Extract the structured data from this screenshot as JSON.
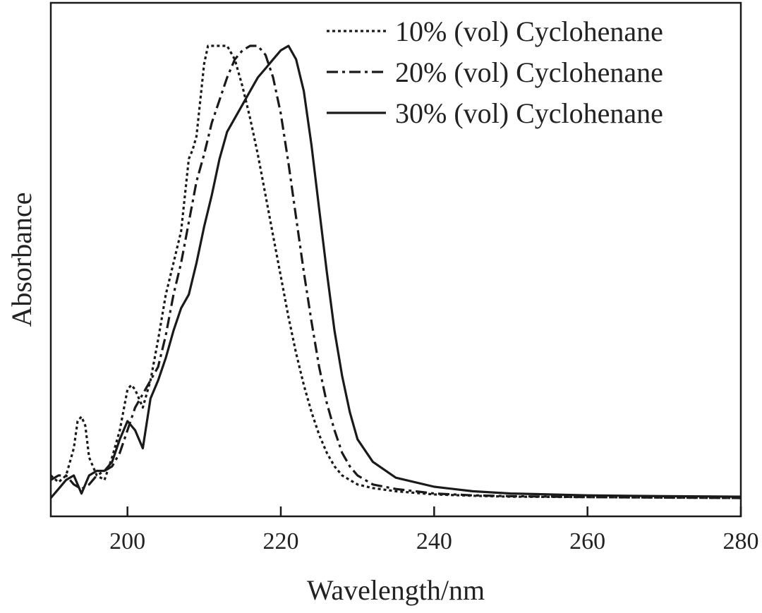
{
  "chart_data": {
    "type": "line",
    "title": "",
    "xlabel": "Wavelength/nm",
    "ylabel": "Absorbance",
    "xlim": [
      190,
      280
    ],
    "ylim": [
      0,
      1
    ],
    "x_ticks": [
      200,
      220,
      240,
      260,
      280
    ],
    "y_tick_labels_shown": false,
    "grid": false,
    "legend_position": "top-right",
    "colors": {
      "line": "#1a1a1a",
      "axis": "#1a1a1a",
      "background": "#ffffff"
    },
    "series": [
      {
        "name": "10% (vol) Cyclohenane",
        "line_style": "dotted",
        "x": [
          190,
          191,
          192,
          193,
          193.5,
          194,
          194.5,
          195,
          196,
          197,
          198,
          199,
          200,
          200.5,
          201,
          202,
          203,
          204,
          205,
          206,
          207,
          208,
          208.5,
          209,
          209.5,
          210,
          210.5,
          211,
          212,
          213,
          214,
          215,
          216,
          217,
          218,
          219,
          220,
          221,
          222,
          223,
          224,
          225,
          226,
          227,
          228,
          229,
          230,
          232,
          235,
          240,
          245,
          250,
          260,
          270,
          280
        ],
        "y": [
          0.05,
          0.035,
          0.05,
          0.11,
          0.17,
          0.18,
          0.16,
          0.09,
          0.05,
          0.04,
          0.09,
          0.15,
          0.24,
          0.25,
          0.24,
          0.2,
          0.26,
          0.35,
          0.45,
          0.52,
          0.59,
          0.75,
          0.77,
          0.8,
          0.88,
          0.96,
          1.0,
          1.0,
          1.0,
          1.0,
          0.97,
          0.91,
          0.84,
          0.76,
          0.67,
          0.58,
          0.49,
          0.4,
          0.32,
          0.25,
          0.19,
          0.14,
          0.1,
          0.07,
          0.05,
          0.04,
          0.03,
          0.022,
          0.015,
          0.008,
          0.005,
          0.003,
          0.002,
          0.001,
          0.0
        ]
      },
      {
        "name": "20% (vol) Cyclohenane",
        "line_style": "dash-dot",
        "x": [
          190,
          191,
          192,
          193,
          194,
          195,
          196,
          197,
          198,
          199,
          200,
          201,
          202,
          203,
          204,
          205,
          206,
          207,
          208,
          209,
          210,
          211,
          212,
          213,
          214,
          215,
          216,
          217,
          218,
          219,
          220,
          221,
          222,
          223,
          224,
          225,
          226,
          227,
          228,
          229,
          230,
          232,
          235,
          240,
          245,
          250,
          260,
          270,
          280
        ],
        "y": [
          0.04,
          0.05,
          0.05,
          0.03,
          0.02,
          0.03,
          0.05,
          0.06,
          0.07,
          0.1,
          0.15,
          0.2,
          0.23,
          0.26,
          0.29,
          0.36,
          0.45,
          0.52,
          0.61,
          0.7,
          0.76,
          0.83,
          0.88,
          0.93,
          0.97,
          0.99,
          1.0,
          1.0,
          0.98,
          0.93,
          0.85,
          0.74,
          0.62,
          0.5,
          0.39,
          0.29,
          0.21,
          0.15,
          0.1,
          0.07,
          0.05,
          0.03,
          0.02,
          0.01,
          0.006,
          0.004,
          0.002,
          0.001,
          0.0
        ]
      },
      {
        "name": "30% (vol) Cyclohenane",
        "line_style": "solid",
        "x": [
          190,
          191,
          192,
          193,
          194,
          195,
          196,
          197,
          198,
          199,
          200,
          201,
          202,
          203,
          204,
          205,
          206,
          207,
          208,
          209,
          210,
          211,
          212,
          213,
          214,
          215,
          216,
          217,
          218,
          219,
          220,
          221,
          222,
          223,
          224,
          225,
          226,
          227,
          228,
          229,
          230,
          232,
          235,
          240,
          245,
          250,
          260,
          270,
          280
        ],
        "y": [
          0.0,
          0.02,
          0.04,
          0.05,
          0.01,
          0.05,
          0.06,
          0.06,
          0.08,
          0.13,
          0.17,
          0.15,
          0.11,
          0.22,
          0.26,
          0.31,
          0.37,
          0.42,
          0.45,
          0.52,
          0.6,
          0.67,
          0.75,
          0.81,
          0.84,
          0.87,
          0.9,
          0.93,
          0.95,
          0.97,
          0.99,
          1.0,
          0.97,
          0.9,
          0.78,
          0.64,
          0.5,
          0.37,
          0.27,
          0.19,
          0.13,
          0.08,
          0.045,
          0.025,
          0.015,
          0.01,
          0.006,
          0.004,
          0.003
        ]
      }
    ]
  }
}
